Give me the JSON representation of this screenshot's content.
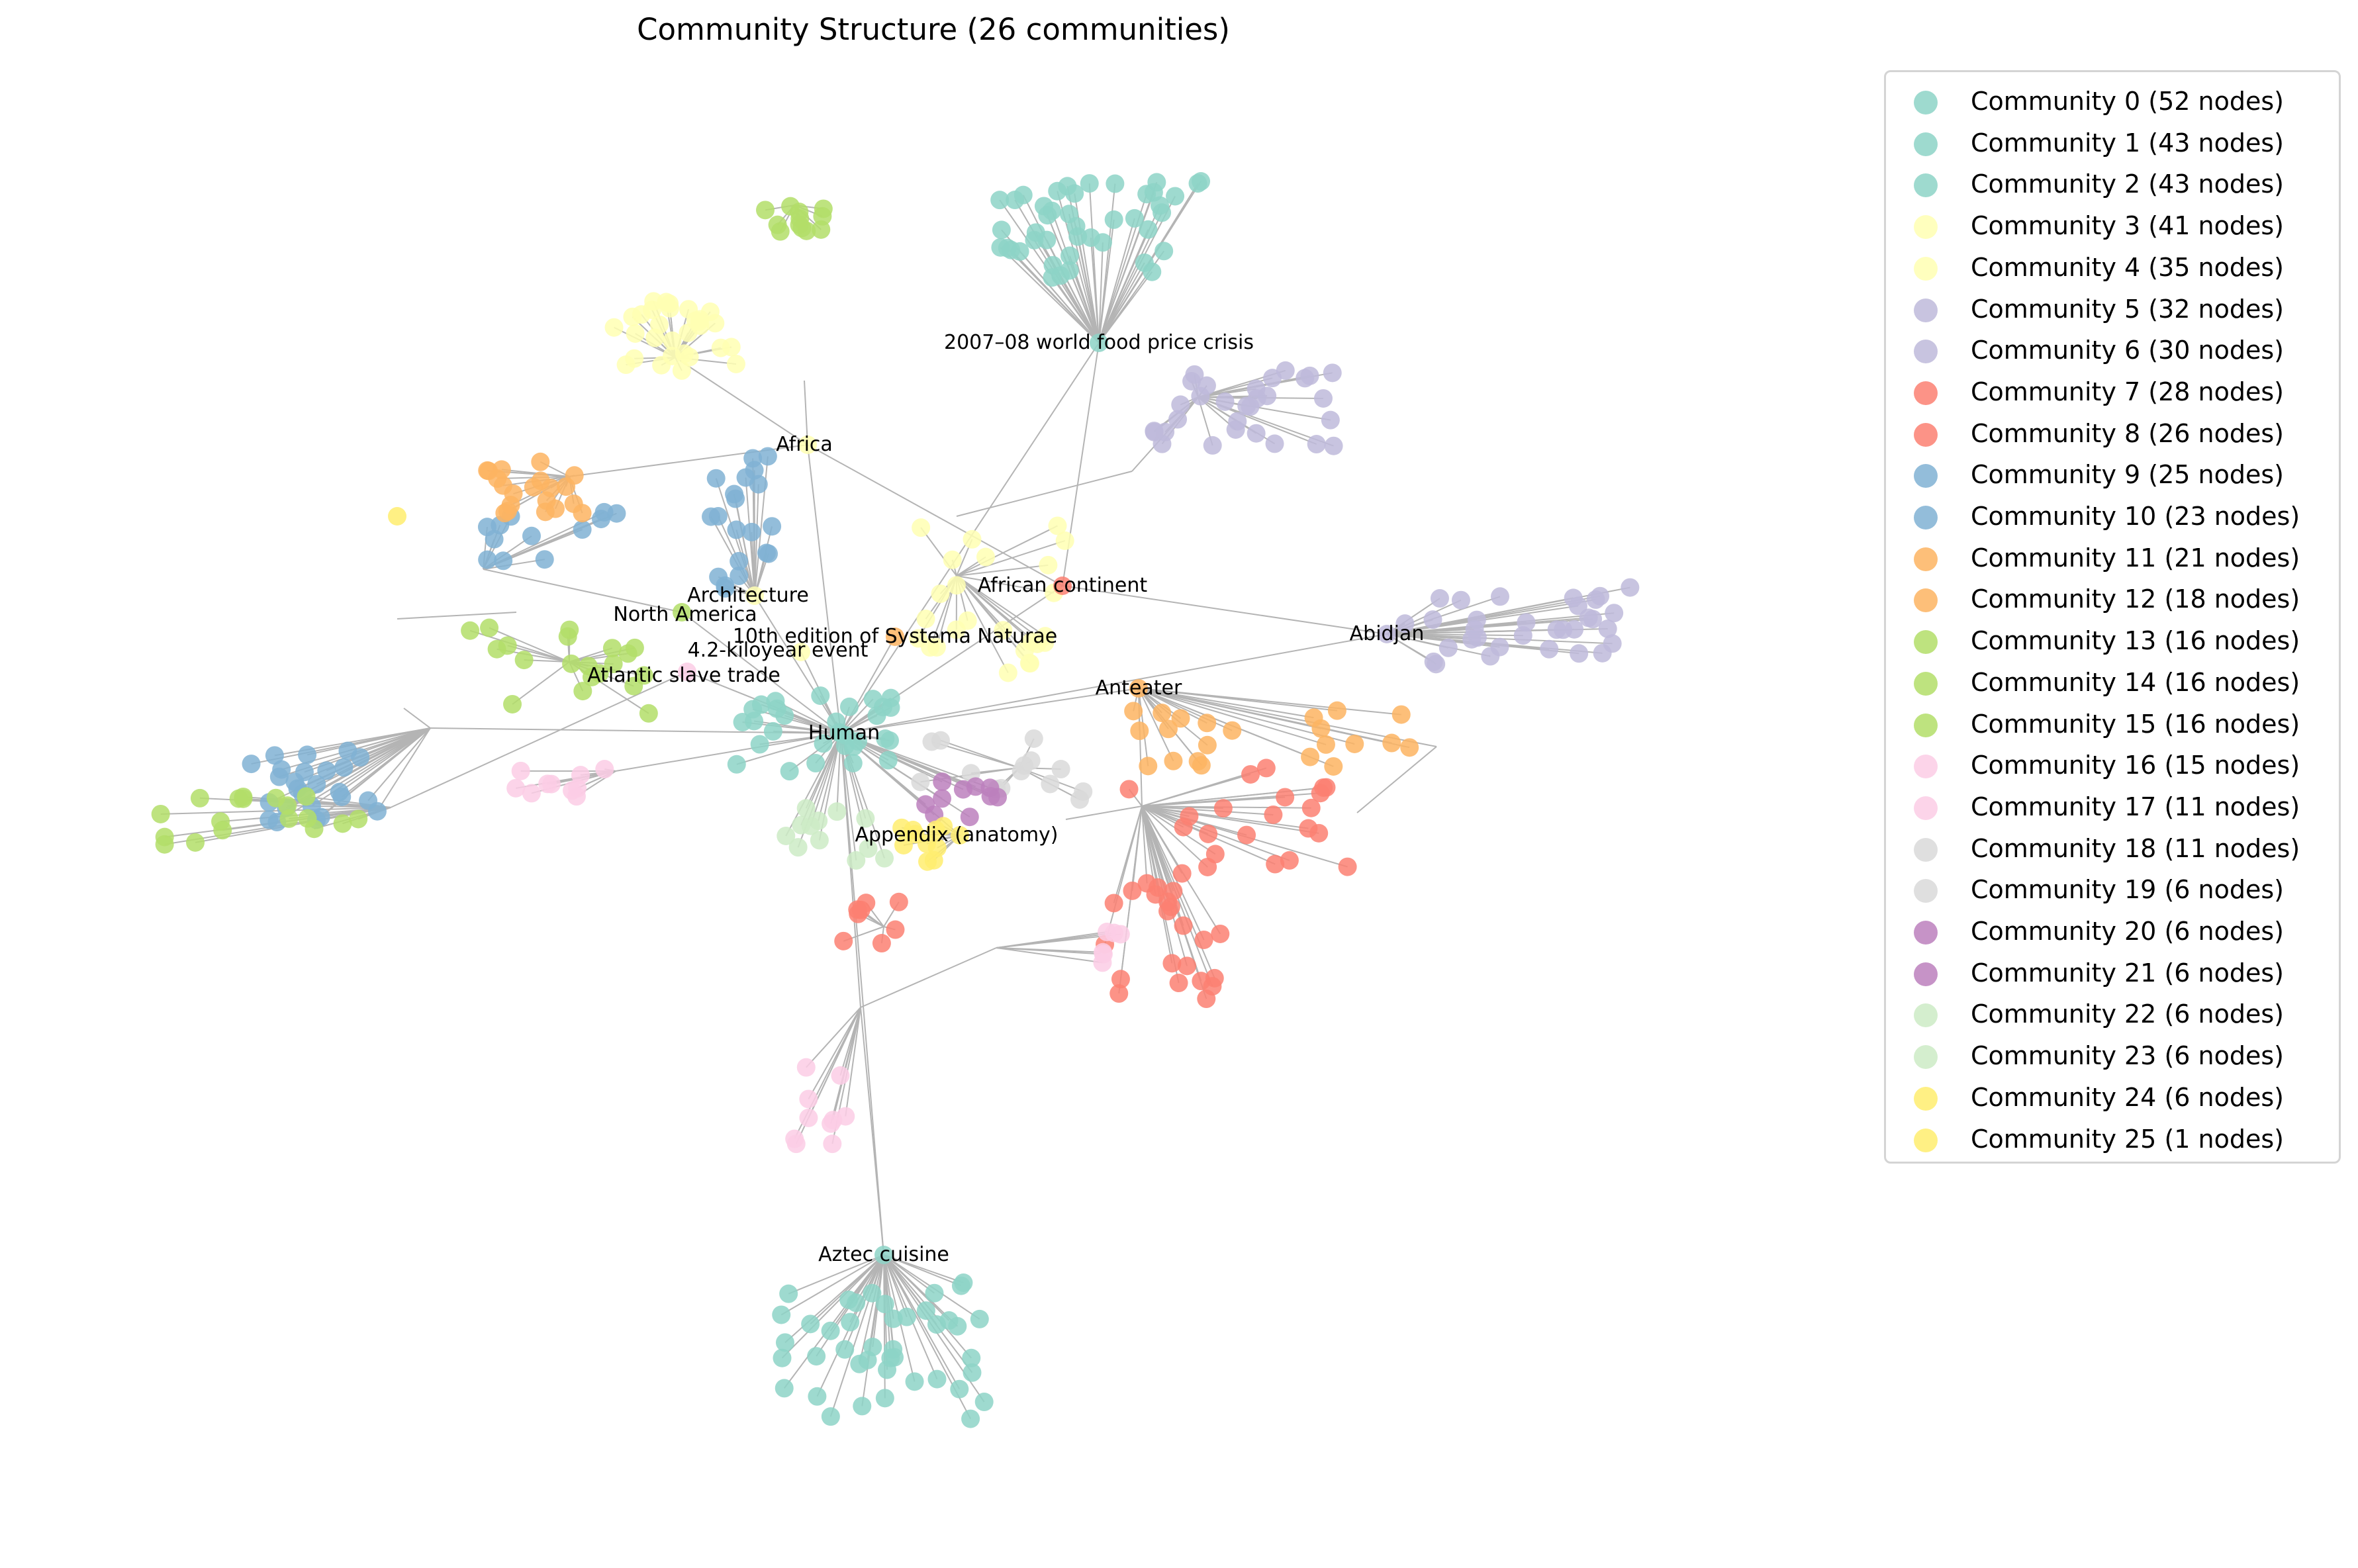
{
  "title": "Community Structure (26 communities)",
  "colors": {
    "teal": "#8dd3c7",
    "yellow": "#ffffb3",
    "lavender": "#bebada",
    "salmon": "#fb8072",
    "blue": "#80b1d3",
    "orange": "#fdb462",
    "green": "#b3de69",
    "pink": "#fccde5",
    "gray": "#d9d9d9",
    "purple": "#bc80bd",
    "mint": "#ccebc5",
    "gold": "#ffed6f",
    "edge": "#b4b4b4"
  },
  "legend": [
    {
      "label": "Community 0 (52 nodes)",
      "color": "#8dd3c7"
    },
    {
      "label": "Community 1 (43 nodes)",
      "color": "#8dd3c7"
    },
    {
      "label": "Community 2 (43 nodes)",
      "color": "#8dd3c7"
    },
    {
      "label": "Community 3 (41 nodes)",
      "color": "#ffffb3"
    },
    {
      "label": "Community 4 (35 nodes)",
      "color": "#ffffb3"
    },
    {
      "label": "Community 5 (32 nodes)",
      "color": "#bebada"
    },
    {
      "label": "Community 6 (30 nodes)",
      "color": "#bebada"
    },
    {
      "label": "Community 7 (28 nodes)",
      "color": "#fb8072"
    },
    {
      "label": "Community 8 (26 nodes)",
      "color": "#fb8072"
    },
    {
      "label": "Community 9 (25 nodes)",
      "color": "#80b1d3"
    },
    {
      "label": "Community 10 (23 nodes)",
      "color": "#80b1d3"
    },
    {
      "label": "Community 11 (21 nodes)",
      "color": "#fdb462"
    },
    {
      "label": "Community 12 (18 nodes)",
      "color": "#fdb462"
    },
    {
      "label": "Community 13 (16 nodes)",
      "color": "#b3de69"
    },
    {
      "label": "Community 14 (16 nodes)",
      "color": "#b3de69"
    },
    {
      "label": "Community 15 (16 nodes)",
      "color": "#b3de69"
    },
    {
      "label": "Community 16 (15 nodes)",
      "color": "#fccde5"
    },
    {
      "label": "Community 17 (11 nodes)",
      "color": "#fccde5"
    },
    {
      "label": "Community 18 (11 nodes)",
      "color": "#d9d9d9"
    },
    {
      "label": "Community 19 (6 nodes)",
      "color": "#d9d9d9"
    },
    {
      "label": "Community 20 (6 nodes)",
      "color": "#bc80bd"
    },
    {
      "label": "Community 21 (6 nodes)",
      "color": "#bc80bd"
    },
    {
      "label": "Community 22 (6 nodes)",
      "color": "#ccebc5"
    },
    {
      "label": "Community 23 (6 nodes)",
      "color": "#ccebc5"
    },
    {
      "label": "Community 24 (6 nodes)",
      "color": "#ffed6f"
    },
    {
      "label": "Community 25 (1 nodes)",
      "color": "#ffed6f"
    }
  ],
  "node_labels": [
    "2007–08 world food price crisis",
    "Africa",
    "African continent",
    "Architecture",
    "North America",
    "10th edition of Systema Naturae",
    "4.2-kiloyear event",
    "Atlantic slave trade",
    "Abidjan",
    "Anteater",
    "Human",
    "Appendix (anatomy)",
    "Aztec cuisine"
  ]
}
